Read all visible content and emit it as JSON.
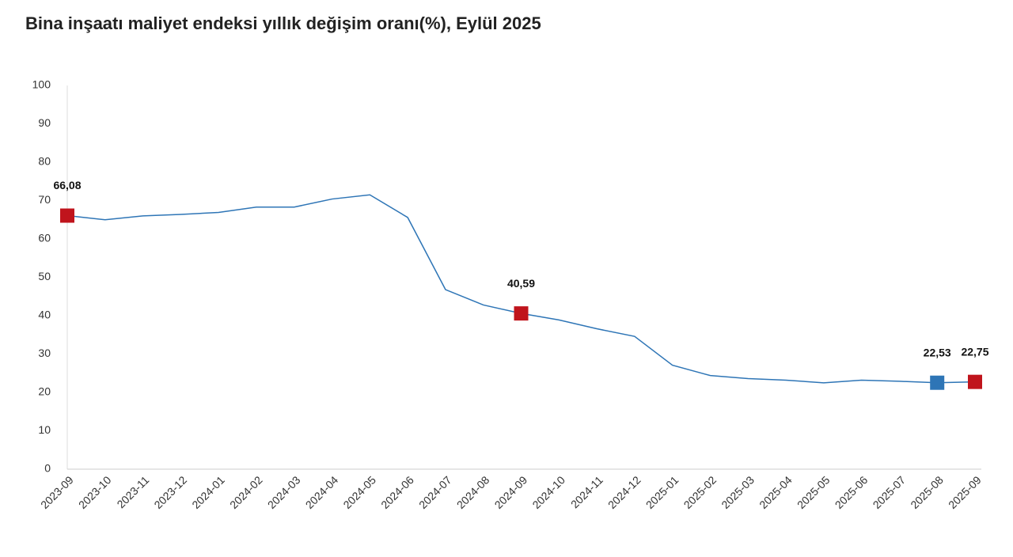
{
  "chart_data": {
    "type": "line",
    "title": "Bina inşaatı maliyet endeksi yıllık değişim oranı(%), Eylül 2025",
    "categories": [
      "2023-09",
      "2023-10",
      "2023-11",
      "2023-12",
      "2024-01",
      "2024-02",
      "2024-03",
      "2024-04",
      "2024-05",
      "2024-06",
      "2024-07",
      "2024-08",
      "2024-09",
      "2024-10",
      "2024-11",
      "2024-12",
      "2025-01",
      "2025-02",
      "2025-03",
      "2025-04",
      "2025-05",
      "2025-06",
      "2025-07",
      "2025-08",
      "2025-09"
    ],
    "series": [
      {
        "color": "#2e75b6",
        "values": [
          66.08,
          65.0,
          66.0,
          66.4,
          66.9,
          68.3,
          68.3,
          70.4,
          71.5,
          65.6,
          46.8,
          42.8,
          40.59,
          38.9,
          36.6,
          34.6,
          27.1,
          24.4,
          23.6,
          23.2,
          22.5,
          23.2,
          22.9,
          22.53,
          22.75
        ],
        "value_labels": [
          "66,08",
          null,
          null,
          null,
          null,
          null,
          null,
          null,
          null,
          null,
          null,
          null,
          "40,59",
          null,
          null,
          null,
          null,
          null,
          null,
          null,
          null,
          null,
          null,
          "22,53",
          "22,75"
        ],
        "marker_colors": [
          "#c0141c",
          null,
          null,
          null,
          null,
          null,
          null,
          null,
          null,
          null,
          null,
          null,
          "#c0141c",
          null,
          null,
          null,
          null,
          null,
          null,
          null,
          null,
          null,
          null,
          "#2e75b6",
          "#c0141c"
        ]
      }
    ],
    "ylim": [
      0,
      100
    ],
    "yticks": [
      0,
      10,
      20,
      30,
      40,
      50,
      60,
      70,
      80,
      90,
      100
    ],
    "grid": false
  }
}
